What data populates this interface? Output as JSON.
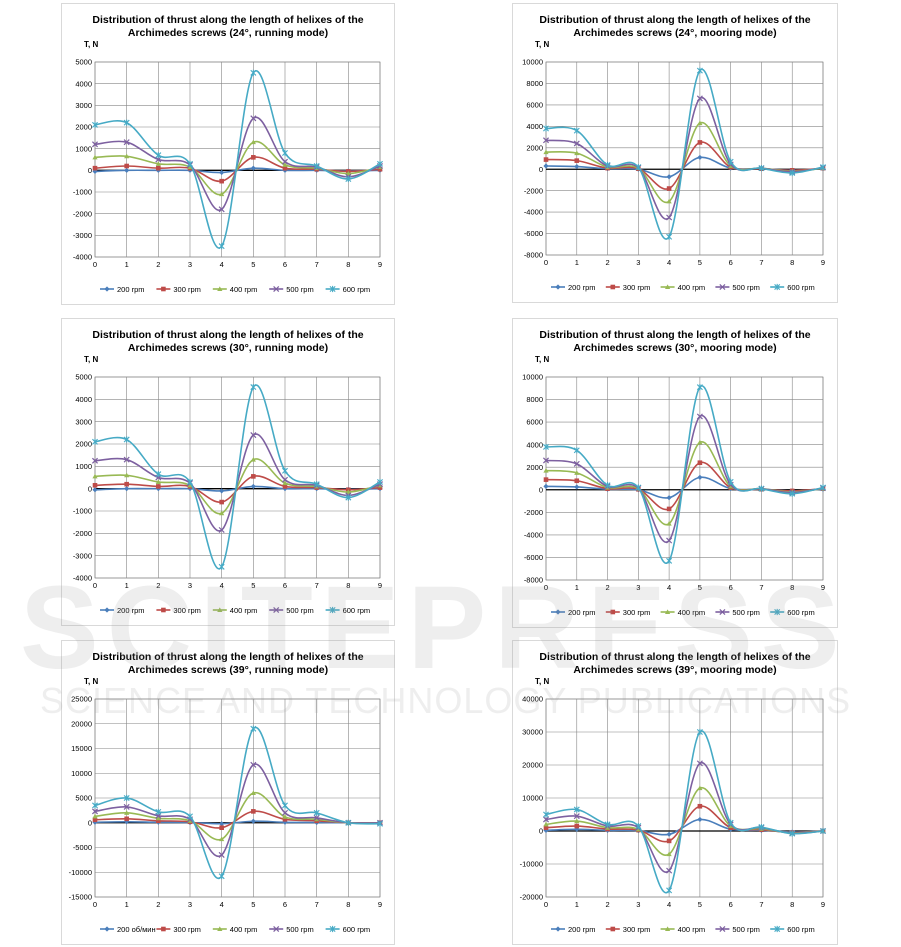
{
  "colors": {
    "s200": "#4a7ebb",
    "s300": "#be4b48",
    "s400": "#98b954",
    "s500": "#7d60a0",
    "s600": "#46aac5",
    "grid": "#868686",
    "axis": "#000000"
  },
  "watermark": {
    "line1": "SCITEPRESS",
    "line2": "SCIENCE AND TECHNOLOGY PUBLICATIONS"
  },
  "chart_data": [
    {
      "type": "line",
      "title_line1": "Distribution of thrust along the length of helixes of the",
      "title_line2": "Archimedes screws  (24°, running mode)",
      "ylabel": "T, N",
      "x": [
        0,
        1,
        2,
        3,
        4,
        5,
        6,
        7,
        8,
        9
      ],
      "ylim": [
        -4000,
        5000
      ],
      "ystep": 1000,
      "legend_position": "bottom",
      "series": [
        {
          "name": "200 rpm",
          "values": [
            -50,
            0,
            0,
            0,
            -100,
            100,
            0,
            0,
            -30,
            0
          ]
        },
        {
          "name": "300 rpm",
          "values": [
            100,
            200,
            100,
            100,
            -500,
            600,
            100,
            50,
            -50,
            50
          ]
        },
        {
          "name": "400 rpm",
          "values": [
            600,
            650,
            300,
            150,
            -1100,
            1300,
            250,
            100,
            -150,
            150
          ]
        },
        {
          "name": "500 rpm",
          "values": [
            1200,
            1300,
            500,
            250,
            -1800,
            2400,
            400,
            150,
            -300,
            200
          ]
        },
        {
          "name": "600 rpm",
          "values": [
            2100,
            2200,
            700,
            300,
            -3500,
            4500,
            800,
            200,
            -400,
            300
          ]
        }
      ]
    },
    {
      "type": "line",
      "title_line1": "Distribution of thrust along the length of helixes of the",
      "title_line2": "Archimedes screws  (24°, mooring mode)",
      "ylabel": "T, N",
      "x": [
        0,
        1,
        2,
        3,
        4,
        5,
        6,
        7,
        8,
        9
      ],
      "ylim": [
        -8000,
        10000
      ],
      "ystep": 2000,
      "legend_position": "bottom",
      "series": [
        {
          "name": "200 rpm",
          "values": [
            300,
            250,
            50,
            0,
            -700,
            1100,
            100,
            50,
            -100,
            50
          ]
        },
        {
          "name": "300 rpm",
          "values": [
            900,
            800,
            100,
            50,
            -1800,
            2500,
            200,
            50,
            -100,
            100
          ]
        },
        {
          "name": "400 rpm",
          "values": [
            1600,
            1500,
            200,
            100,
            -3000,
            4300,
            300,
            100,
            -200,
            100
          ]
        },
        {
          "name": "500 rpm",
          "values": [
            2700,
            2400,
            300,
            150,
            -4500,
            6600,
            450,
            100,
            -250,
            150
          ]
        },
        {
          "name": "600 rpm",
          "values": [
            3800,
            3600,
            400,
            200,
            -6300,
            9200,
            700,
            100,
            -350,
            200
          ]
        }
      ]
    },
    {
      "type": "line",
      "title_line1": "Distribution of thrust along the length of helixes of the",
      "title_line2": "Archimedes screws  (30°, running mode)",
      "ylabel": "T, N",
      "x": [
        0,
        1,
        2,
        3,
        4,
        5,
        6,
        7,
        8,
        9
      ],
      "ylim": [
        -4000,
        5000
      ],
      "ystep": 1000,
      "legend_position": "bottom",
      "series": [
        {
          "name": "200 rpm",
          "values": [
            -50,
            0,
            0,
            0,
            -100,
            100,
            0,
            0,
            -30,
            0
          ]
        },
        {
          "name": "300 rpm",
          "values": [
            150,
            200,
            100,
            100,
            -600,
            550,
            100,
            50,
            -50,
            50
          ]
        },
        {
          "name": "400 rpm",
          "values": [
            550,
            600,
            300,
            150,
            -1100,
            1300,
            250,
            100,
            -150,
            150
          ]
        },
        {
          "name": "500 rpm",
          "values": [
            1250,
            1300,
            500,
            250,
            -1850,
            2400,
            400,
            150,
            -300,
            200
          ]
        },
        {
          "name": "600 rpm",
          "values": [
            2100,
            2200,
            650,
            300,
            -3500,
            4550,
            800,
            200,
            -400,
            300
          ]
        }
      ]
    },
    {
      "type": "line",
      "title_line1": "Distribution of thrust along the length of helixes of the",
      "title_line2": "Archimedes screws  (30°, mooring mode)",
      "ylabel": "T, N",
      "x": [
        0,
        1,
        2,
        3,
        4,
        5,
        6,
        7,
        8,
        9
      ],
      "ylim": [
        -8000,
        10000
      ],
      "ystep": 2000,
      "legend_position": "bottom",
      "series": [
        {
          "name": "200 rpm",
          "values": [
            300,
            250,
            50,
            0,
            -700,
            1100,
            100,
            50,
            -100,
            50
          ]
        },
        {
          "name": "300 rpm",
          "values": [
            900,
            800,
            100,
            50,
            -1700,
            2400,
            200,
            50,
            -100,
            100
          ]
        },
        {
          "name": "400 rpm",
          "values": [
            1700,
            1500,
            200,
            100,
            -3000,
            4200,
            300,
            100,
            -200,
            100
          ]
        },
        {
          "name": "500 rpm",
          "values": [
            2600,
            2300,
            300,
            150,
            -4500,
            6500,
            450,
            100,
            -250,
            150
          ]
        },
        {
          "name": "600 rpm",
          "values": [
            3800,
            3500,
            400,
            200,
            -6300,
            9100,
            700,
            100,
            -350,
            200
          ]
        }
      ]
    },
    {
      "type": "line",
      "title_line1": "Distribution of thrust along the length of helixes of the",
      "title_line2": "Archimedes screws  (39°, running mode)",
      "ylabel": "T, N",
      "x": [
        0,
        1,
        2,
        3,
        4,
        5,
        6,
        7,
        8,
        9
      ],
      "ylim": [
        -15000,
        25000
      ],
      "ystep": 5000,
      "legend_position": "bottom",
      "series": [
        {
          "name": "200 об/мин",
          "values": [
            100,
            200,
            100,
            50,
            -200,
            300,
            100,
            50,
            0,
            0
          ]
        },
        {
          "name": "300 rpm",
          "values": [
            600,
            800,
            400,
            200,
            -1000,
            2300,
            700,
            400,
            0,
            0
          ]
        },
        {
          "name": "400 rpm",
          "values": [
            1300,
            2000,
            900,
            400,
            -3300,
            6000,
            1200,
            700,
            0,
            0
          ]
        },
        {
          "name": "500 rpm",
          "values": [
            2300,
            3200,
            1400,
            700,
            -6500,
            11700,
            2000,
            1000,
            0,
            0
          ]
        },
        {
          "name": "600 rpm",
          "values": [
            3500,
            5000,
            2200,
            1300,
            -10800,
            19000,
            3500,
            2000,
            0,
            -200
          ]
        }
      ]
    },
    {
      "type": "line",
      "title_line1": "Distribution of thrust along the length of helixes of the",
      "title_line2": "Archimedes screws  (39°, mooring mode)",
      "ylabel": "T, N",
      "x": [
        0,
        1,
        2,
        3,
        4,
        5,
        6,
        7,
        8,
        9
      ],
      "ylim": [
        -20000,
        40000
      ],
      "ystep": 10000,
      "legend_position": "bottom",
      "series": [
        {
          "name": "200 rpm",
          "values": [
            200,
            500,
            200,
            100,
            -1000,
            3500,
            500,
            200,
            -300,
            0
          ]
        },
        {
          "name": "300 rpm",
          "values": [
            1000,
            1500,
            600,
            300,
            -3000,
            7500,
            1000,
            400,
            -500,
            0
          ]
        },
        {
          "name": "400 rpm",
          "values": [
            2000,
            3000,
            1000,
            500,
            -7000,
            13000,
            1500,
            700,
            -600,
            0
          ]
        },
        {
          "name": "500 rpm",
          "values": [
            3500,
            4500,
            1500,
            1000,
            -12000,
            20500,
            2000,
            1000,
            -700,
            0
          ]
        },
        {
          "name": "600 rpm",
          "values": [
            5000,
            6500,
            2000,
            1500,
            -18000,
            30000,
            2500,
            1200,
            -800,
            0
          ]
        }
      ]
    }
  ]
}
